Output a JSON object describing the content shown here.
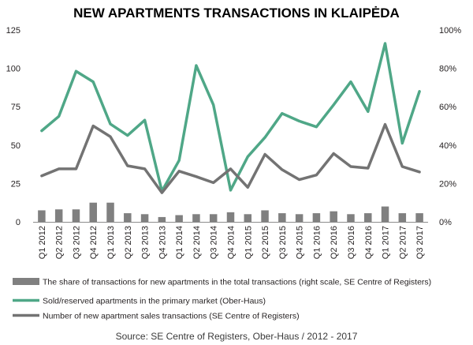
{
  "chart_data": {
    "type": "line",
    "title": "NEW APARTMENTS TRANSACTIONS IN KLAIPĖDA",
    "source": "Source: SE Centre of Registers,  Ober-Haus  / 2012 - 2017",
    "categories": [
      "Q1 2012",
      "Q2 2012",
      "Q3 2012",
      "Q4 2012",
      "Q1 2013",
      "Q2 2013",
      "Q3 2013",
      "Q4 2013",
      "Q1 2014",
      "Q2 2014",
      "Q3 2014",
      "Q4 2014",
      "Q1 2015",
      "Q2 2015",
      "Q3 2015",
      "Q4 2015",
      "Q1 2016",
      "Q2 2016",
      "Q3 2016",
      "Q4 2016",
      "Q1 2017",
      "Q2 2017",
      "Q3 2017"
    ],
    "ylim_left": [
      0,
      125
    ],
    "yticks_left": [
      "0",
      "25",
      "50",
      "75",
      "100",
      "125"
    ],
    "ylim_right": [
      0,
      100
    ],
    "yticks_right": [
      "0%",
      "20%",
      "40%",
      "60%",
      "80%",
      "100%"
    ],
    "grid": false,
    "legend_position": "bottom",
    "colors": {
      "bars": "#808080",
      "sold": "#4fa787",
      "number": "#737373"
    },
    "series": [
      {
        "name": "The share of transactions for new apartments in the total transactions (right scale, SE Centre of Registers)",
        "kind": "bar",
        "axis": "right",
        "values": [
          6,
          6.5,
          6.5,
          10,
          10,
          4.5,
          4,
          2.5,
          3.5,
          4,
          4,
          5,
          4,
          6,
          4.5,
          4,
          4.5,
          5.5,
          4,
          4.5,
          8,
          4.5,
          4.5
        ]
      },
      {
        "name": "Sold/reserved apartments in the primary market (Ober-Haus)",
        "kind": "line",
        "axis": "right",
        "values": [
          47.5,
          55,
          78.5,
          73,
          51,
          45,
          53,
          16,
          32,
          81.5,
          61,
          16.5,
          34,
          44,
          56.5,
          52.5,
          49.5,
          61,
          73,
          57.5,
          93,
          41,
          68
        ]
      },
      {
        "name": "Number of new apartment sales transactions (SE Centre of Registers)",
        "kind": "line",
        "axis": "left",
        "values": [
          30,
          34.5,
          34.5,
          62.5,
          55.5,
          36.5,
          34.5,
          19,
          33,
          29.5,
          25.5,
          34.5,
          22.5,
          44,
          34,
          27.5,
          30.5,
          44.5,
          36,
          35,
          63.5,
          36,
          32.5
        ]
      }
    ]
  }
}
